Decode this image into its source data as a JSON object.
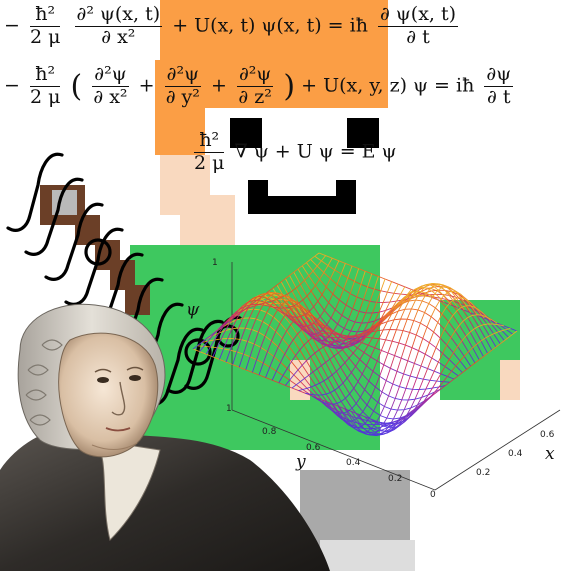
{
  "equations": {
    "eq1": {
      "lhs_sign": "−",
      "frac1_num": "ħ²",
      "frac1_den": "2 μ",
      "frac2_num": "∂² ψ(x, t)",
      "frac2_den": "∂ x²",
      "plus": "+",
      "term": "U(x, t) ψ(x,  t)",
      "equals": "=",
      "ih": "iħ",
      "frac3_num": "∂ ψ(x, t)",
      "frac3_den": "∂ t"
    },
    "eq2": {
      "lhs_sign": "−",
      "frac1_num": "ħ²",
      "frac1_den": "2 μ",
      "open": "(",
      "dxx_num": "∂²ψ",
      "dxx_den": "∂ x²",
      "plus1": "+",
      "dyy_num": "∂²ψ",
      "dyy_den": "∂ y²",
      "plus2": "+",
      "dzz_num": "∂²ψ",
      "dzz_den": "∂ z²",
      "close": ")",
      "plus3": "+",
      "term": "U(x, y, z) ψ",
      "equals": "=",
      "ih": "iħ",
      "frac3_num": "∂ψ",
      "frac3_den": "∂ t"
    },
    "eq3": {
      "frac_num": "ħ²",
      "frac_den": "2 μ",
      "rest": "∇ ψ + U ψ = E ψ"
    }
  },
  "plot": {
    "x_axis_label": "x",
    "y_axis_label": "y",
    "z_axis_label": "ψ",
    "x_ticks": [
      "0.2",
      "0.4",
      "0.6"
    ],
    "y_ticks": [
      "0.2",
      "0.4",
      "0.6",
      "0.8"
    ],
    "z_tick_top": "1",
    "origin_tick": "0",
    "z_tick_bottom": "1"
  },
  "colors": {
    "hair_orange": "#fb9e45",
    "shirt_green": "#3ec85f",
    "skin": "#f9d9bf",
    "brown": "#6b3f27",
    "pants_gray": "#a9a9a9",
    "black": "#000000"
  },
  "portrait": {
    "subject": "engraved-portrait-of-man-in-wig"
  }
}
